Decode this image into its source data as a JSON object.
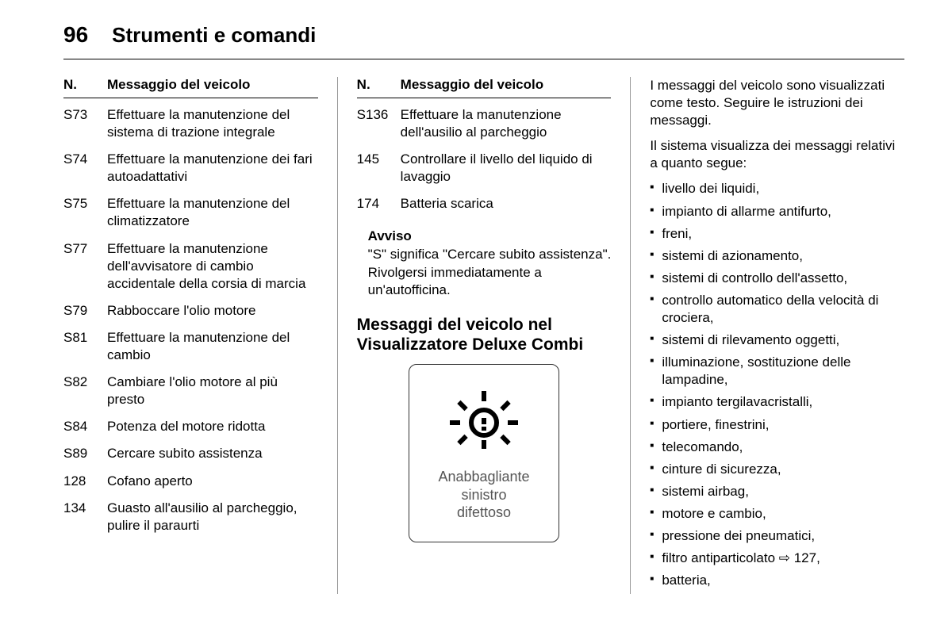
{
  "header": {
    "page_number": "96",
    "title": "Strumenti e comandi"
  },
  "table_headers": {
    "code": "N.",
    "message": "Messaggio del veicolo"
  },
  "col1_messages": [
    {
      "code": "S73",
      "text": "Effettuare la manutenzione del sistema di trazione integrale"
    },
    {
      "code": "S74",
      "text": "Effettuare la manutenzione dei fari autoadattativi"
    },
    {
      "code": "S75",
      "text": "Effettuare la manutenzione del climatizzatore"
    },
    {
      "code": "S77",
      "text": "Effettuare la manutenzione dell'avvisatore di cambio accidentale della corsia di marcia"
    },
    {
      "code": "S79",
      "text": "Rabboccare l'olio motore"
    },
    {
      "code": "S81",
      "text": "Effettuare la manutenzione del cambio"
    },
    {
      "code": "S82",
      "text": "Cambiare l'olio motore al più presto"
    },
    {
      "code": "S84",
      "text": "Potenza del motore ridotta"
    },
    {
      "code": "S89",
      "text": "Cercare subito assistenza"
    },
    {
      "code": "128",
      "text": "Cofano aperto"
    },
    {
      "code": "134",
      "text": "Guasto all'ausilio al parcheggio, pulire il paraurti"
    }
  ],
  "col2_messages": [
    {
      "code": "S136",
      "text": "Effettuare la manutenzione dell'ausilio al parcheggio"
    },
    {
      "code": "145",
      "text": "Controllare il livello del liquido di lavaggio"
    },
    {
      "code": "174",
      "text": "Batteria scarica"
    }
  ],
  "notice": {
    "label": "Avviso",
    "text": "\"S\" significa \"Cercare subito assistenza\". Rivolgersi immediatamente a un'autofficina."
  },
  "section_heading": "Messaggi del veicolo nel Visualizzatore Deluxe Combi",
  "display_box": {
    "line1": "Anabbagliante",
    "line2": "sinistro",
    "line3": "difettoso"
  },
  "col3": {
    "para1": "I messaggi del veicolo sono visualizzati come testo. Seguire le istruzioni dei messaggi.",
    "para2": "Il sistema visualizza dei messaggi relativi a quanto segue:",
    "bullets": [
      "livello dei liquidi,",
      "impianto di allarme antifurto,",
      "freni,",
      "sistemi di azionamento,",
      "sistemi di controllo dell'assetto,",
      "controllo automatico della velocità di crociera,",
      "sistemi di rilevamento oggetti,",
      "illuminazione, sostituzione delle lampadine,",
      "impianto tergilavacristalli,",
      "portiere, finestrini,",
      "telecomando,",
      "cinture di sicurezza,",
      "sistemi airbag,",
      "motore e cambio,",
      "pressione dei pneumatici,",
      "filtro antiparticolato ⇨ 127,",
      "batteria,"
    ]
  }
}
